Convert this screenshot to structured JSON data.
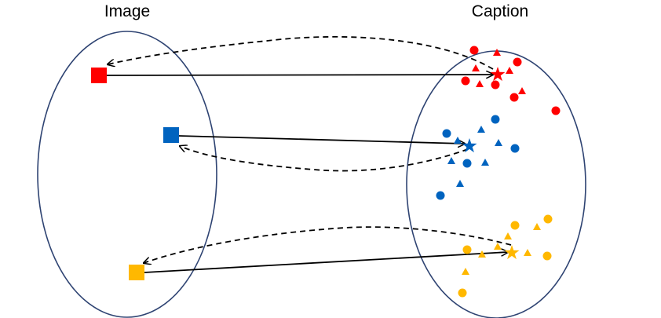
{
  "labels": {
    "left": "Image",
    "right": "Caption"
  },
  "colors": {
    "ellipse_stroke": "#2E4372",
    "red": "#FF0000",
    "blue": "#0063BF",
    "yellow": "#FFB800",
    "arrow": "#000000"
  },
  "groups": [
    {
      "name": "red"
    },
    {
      "name": "blue"
    },
    {
      "name": "yellow"
    }
  ]
}
